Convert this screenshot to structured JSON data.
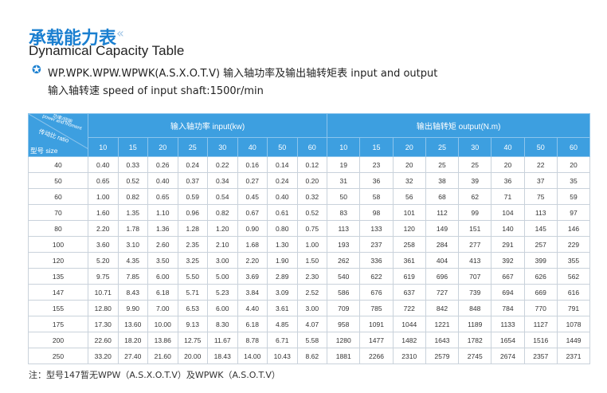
{
  "header": {
    "title": "承载能力表",
    "title_mark": "«",
    "subtitle": "Dynamical Capacity Table",
    "line1": "WP.WPK.WPW.WPWK(A.S.X.O.T.V) 输入轴功率及输出轴转矩表  input and output",
    "line2": "输入轴转速 speed of input shaft:1500r/min"
  },
  "table": {
    "corner_top": "功率/扭矩",
    "corner_top_en": "power and moment",
    "corner_ratio": "传动比 ratio",
    "corner_size": "型号 size",
    "input_header": "输入轴功率 input(kw)",
    "output_header": "输出轴转矩 output(N.m)",
    "input_ratios": [
      "10",
      "15",
      "20",
      "25",
      "30",
      "40",
      "50",
      "60"
    ],
    "output_ratios": [
      "10",
      "15",
      "20",
      "25",
      "30",
      "40",
      "50",
      "60"
    ],
    "rows": [
      [
        "40",
        "0.40",
        "0.33",
        "0.26",
        "0.24",
        "0.22",
        "0.16",
        "0.14",
        "0.12",
        "19",
        "23",
        "20",
        "25",
        "25",
        "20",
        "22",
        "20"
      ],
      [
        "50",
        "0.65",
        "0.52",
        "0.40",
        "0.37",
        "0.34",
        "0.27",
        "0.24",
        "0.20",
        "31",
        "36",
        "32",
        "38",
        "39",
        "36",
        "37",
        "35"
      ],
      [
        "60",
        "1.00",
        "0.82",
        "0.65",
        "0.59",
        "0.54",
        "0.45",
        "0.40",
        "0.32",
        "50",
        "58",
        "56",
        "68",
        "62",
        "71",
        "75",
        "59"
      ],
      [
        "70",
        "1.60",
        "1.35",
        "1.10",
        "0.96",
        "0.82",
        "0.67",
        "0.61",
        "0.52",
        "83",
        "98",
        "101",
        "112",
        "99",
        "104",
        "113",
        "97"
      ],
      [
        "80",
        "2.20",
        "1.78",
        "1.36",
        "1.28",
        "1.20",
        "0.90",
        "0.80",
        "0.75",
        "113",
        "133",
        "120",
        "149",
        "151",
        "140",
        "145",
        "146"
      ],
      [
        "100",
        "3.60",
        "3.10",
        "2.60",
        "2.35",
        "2.10",
        "1.68",
        "1.30",
        "1.00",
        "193",
        "237",
        "258",
        "284",
        "277",
        "291",
        "257",
        "229"
      ],
      [
        "120",
        "5.20",
        "4.35",
        "3.50",
        "3.25",
        "3.00",
        "2.20",
        "1.90",
        "1.50",
        "262",
        "336",
        "361",
        "404",
        "413",
        "392",
        "399",
        "355"
      ],
      [
        "135",
        "9.75",
        "7.85",
        "6.00",
        "5.50",
        "5.00",
        "3.69",
        "2.89",
        "2.30",
        "540",
        "622",
        "619",
        "696",
        "707",
        "667",
        "626",
        "562"
      ],
      [
        "147",
        "10.71",
        "8.43",
        "6.18",
        "5.71",
        "5.23",
        "3.84",
        "3.09",
        "2.52",
        "586",
        "676",
        "637",
        "727",
        "739",
        "694",
        "669",
        "616"
      ],
      [
        "155",
        "12.80",
        "9.90",
        "7.00",
        "6.53",
        "6.00",
        "4.40",
        "3.61",
        "3.00",
        "709",
        "785",
        "722",
        "842",
        "848",
        "784",
        "770",
        "791"
      ],
      [
        "175",
        "17.30",
        "13.60",
        "10.00",
        "9.13",
        "8.30",
        "6.18",
        "4.85",
        "4.07",
        "958",
        "1091",
        "1044",
        "1221",
        "1189",
        "1133",
        "1127",
        "1078"
      ],
      [
        "200",
        "22.60",
        "18.20",
        "13.86",
        "12.75",
        "11.67",
        "8.78",
        "6.71",
        "5.58",
        "1280",
        "1477",
        "1482",
        "1643",
        "1782",
        "1654",
        "1516",
        "1449"
      ],
      [
        "250",
        "33.20",
        "27.40",
        "21.60",
        "20.00",
        "18.43",
        "14.00",
        "10.43",
        "8.62",
        "1881",
        "2266",
        "2310",
        "2579",
        "2745",
        "2674",
        "2357",
        "2371"
      ]
    ]
  },
  "footnote": "注：型号147暂无WPW（A.S.X.O.T.V）及WPWK（A.S.O.T.V）"
}
